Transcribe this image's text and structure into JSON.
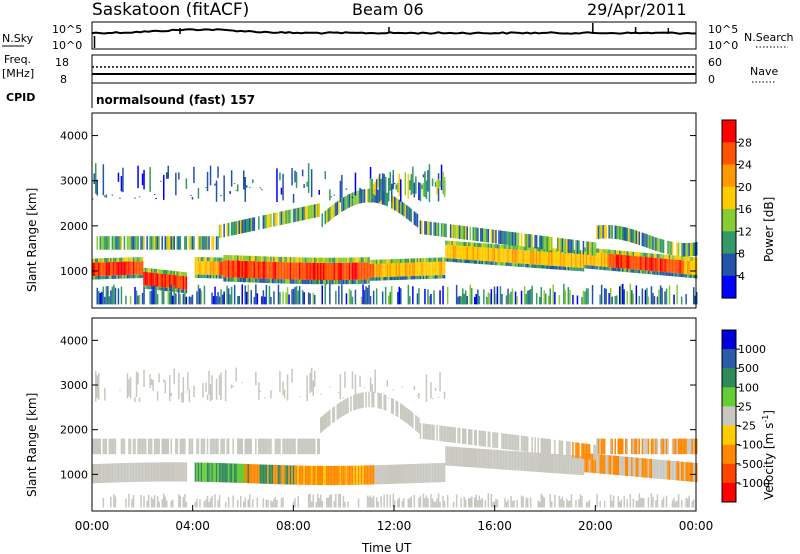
{
  "header": {
    "title": "Saskatoon (fitACF)",
    "beam": "Beam 06",
    "date": "29/Apr/2011"
  },
  "chart_data": [
    {
      "type": "line",
      "panel": "nsky-nsearch",
      "left_label": "N.Sky",
      "right_label": "N.Search",
      "left_ticks": [
        "10^5",
        "10^0"
      ],
      "right_ticks": [
        "10^5",
        "10^0"
      ]
    },
    {
      "type": "line",
      "panel": "freq-nave",
      "left_label": "Freq.",
      "left_unit": "[MHz]",
      "right_label": "Nave",
      "left_ticks": [
        "18",
        "8"
      ],
      "right_ticks": [
        "60",
        "0"
      ]
    },
    {
      "type": "table",
      "panel": "cpid",
      "label": "CPID",
      "program": "normalsound (fast) 157"
    },
    {
      "type": "heatmap",
      "panel": "power",
      "ylabel": "Slant Range [km]",
      "ylim": [
        180,
        4500
      ],
      "yticks": [
        "4000",
        "3000",
        "2000",
        "1000"
      ],
      "xlim": [
        0,
        24
      ],
      "colorbar": {
        "label": "Power [dB]",
        "ticks": [
          "28",
          "24",
          "20",
          "16",
          "12",
          "8",
          "4"
        ],
        "colors": [
          "#ff0000",
          "#ff5500",
          "#ff9900",
          "#ffcc00",
          "#88cc33",
          "#339966",
          "#2255aa",
          "#0000ff"
        ]
      }
    },
    {
      "type": "heatmap",
      "panel": "velocity",
      "ylabel": "Slant Range [km]",
      "ylim": [
        180,
        4500
      ],
      "yticks": [
        "4000",
        "3000",
        "2000",
        "1000"
      ],
      "xlim": [
        0,
        24
      ],
      "xlabel": "Time UT",
      "xticks": [
        "00:00",
        "04:00",
        "08:00",
        "12:00",
        "16:00",
        "20:00",
        "00:00"
      ],
      "colorbar": {
        "label": "Velocity [m s",
        "label_sup": "-1",
        "label_end": "]",
        "ticks": [
          "1000",
          "500",
          "100",
          "25",
          "-25",
          "-100",
          "-500",
          "-1000"
        ],
        "colors": [
          "#0000dd",
          "#2a5ca8",
          "#2e8b57",
          "#66cc33",
          "#c8c8c0",
          "#ffcc00",
          "#ff8800",
          "#ff4400",
          "#ff0000"
        ]
      }
    }
  ]
}
